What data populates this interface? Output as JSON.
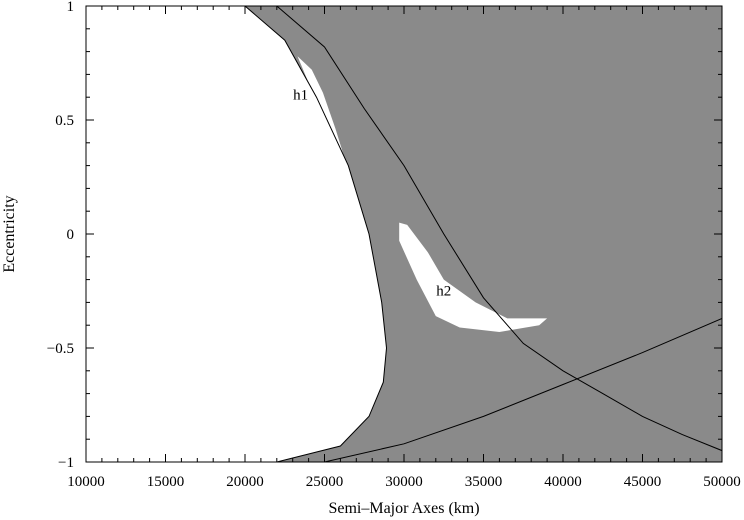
{
  "chart_data": {
    "type": "area",
    "title": "",
    "xlabel": "Semi–Major Axes (km)",
    "ylabel": "Eccentricity",
    "xlim": [
      10000,
      50000
    ],
    "ylim": [
      -1,
      1
    ],
    "xticks": [
      10000,
      15000,
      20000,
      25000,
      30000,
      35000,
      40000,
      45000,
      50000
    ],
    "xtick_labels": [
      "10000",
      "15000",
      "20000",
      "25000",
      "30000",
      "35000",
      "40000",
      "45000",
      "50000"
    ],
    "yticks": [
      -1,
      -0.5,
      0,
      0.5,
      1
    ],
    "ytick_labels": [
      "−1",
      "−0.5",
      "0",
      "0.5",
      "1"
    ],
    "grid": false,
    "colors": {
      "region_fill": "#8a8a8a",
      "background": "#ffffff",
      "curve": "#000000"
    },
    "white_region_boundary": [
      [
        20000,
        1
      ],
      [
        22500,
        0.85
      ],
      [
        24500,
        0.6
      ],
      [
        26500,
        0.3
      ],
      [
        27800,
        0.0
      ],
      [
        28600,
        -0.3
      ],
      [
        28900,
        -0.5
      ],
      [
        28700,
        -0.65
      ],
      [
        27800,
        -0.8
      ],
      [
        26000,
        -0.93
      ],
      [
        22000,
        -1
      ]
    ],
    "curves": [
      {
        "points": [
          [
            22000,
            1
          ],
          [
            25000,
            0.82
          ],
          [
            27500,
            0.55
          ],
          [
            30000,
            0.3
          ],
          [
            32500,
            0.0
          ],
          [
            35000,
            -0.28
          ],
          [
            37500,
            -0.48
          ],
          [
            40000,
            -0.6
          ],
          [
            42500,
            -0.7
          ],
          [
            45000,
            -0.8
          ],
          [
            47500,
            -0.88
          ],
          [
            50000,
            -0.95
          ]
        ]
      },
      {
        "points": [
          [
            25000,
            -1
          ],
          [
            30000,
            -0.92
          ],
          [
            35000,
            -0.8
          ],
          [
            40000,
            -0.66
          ],
          [
            45000,
            -0.52
          ],
          [
            50000,
            -0.37
          ]
        ]
      }
    ],
    "islands": [
      {
        "label": "h1",
        "points": [
          [
            23300,
            0.78
          ],
          [
            23900,
            0.68
          ],
          [
            24600,
            0.52
          ],
          [
            25400,
            0.34
          ],
          [
            26200,
            0.18
          ],
          [
            26800,
            0.08
          ],
          [
            27000,
            0.1
          ],
          [
            26500,
            0.28
          ],
          [
            25700,
            0.46
          ],
          [
            24900,
            0.62
          ],
          [
            24200,
            0.72
          ]
        ]
      },
      {
        "label": "h2",
        "points": [
          [
            29700,
            0.05
          ],
          [
            30200,
            0.04
          ],
          [
            31500,
            -0.08
          ],
          [
            32500,
            -0.2
          ],
          [
            34500,
            -0.3
          ],
          [
            36500,
            -0.37
          ],
          [
            39000,
            -0.37
          ],
          [
            38500,
            -0.4
          ],
          [
            36000,
            -0.43
          ],
          [
            33500,
            -0.41
          ],
          [
            32000,
            -0.36
          ],
          [
            30800,
            -0.2
          ],
          [
            29700,
            -0.03
          ]
        ]
      }
    ],
    "annotations": [
      {
        "text": "h1",
        "x": 23500,
        "y": 0.59
      },
      {
        "text": "h2",
        "x": 32500,
        "y": -0.27
      }
    ]
  }
}
